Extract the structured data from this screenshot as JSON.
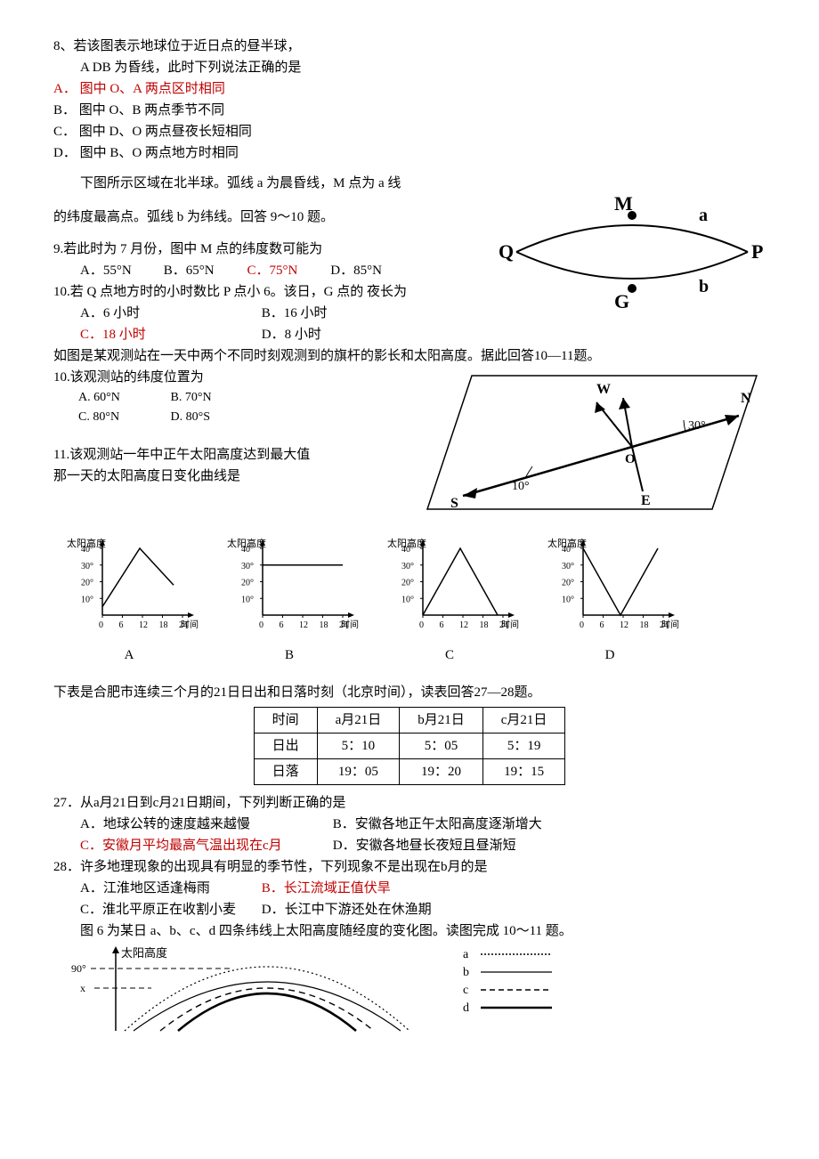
{
  "q8": {
    "stem1": "8、若该图表示地球位于近日点的昼半球，",
    "stem2": "A DB 为昏线，此时下列说法正确的是",
    "A": "A．  图中 O、A 两点区时相同",
    "B": "B．  图中 O、B 两点季节不同",
    "C": "C．  图中 D、O 两点昼夜长短相同",
    "D": "D．  图中 B、O 两点地方时相同"
  },
  "lead9": "下图所示区域在北半球。弧线 a 为晨昏线，M 点为 a 线",
  "lead9b": "的纬度最高点。弧线 b 为纬线。回答 9～10 题。",
  "q9": {
    "stem": "9.若此时为 7 月份，图中 M 点的纬度数可能为",
    "A": "A．55°N",
    "B": "B．65°N",
    "C": "C．75°N",
    "D": "D．85°N"
  },
  "q10a": {
    "stem": "10.若 Q 点地方时的小时数比 P 点小 6。该日，G 点的  夜长为",
    "A": "A．6 小时",
    "B": "B．16 小时",
    "C": "C．18 小时",
    "D": "D．8 小时"
  },
  "diag1": {
    "labels": {
      "M": "M",
      "Q": "Q",
      "P": "P",
      "G": "G",
      "a": "a",
      "b": "b"
    },
    "stroke": "#000",
    "fill": "#000"
  },
  "lead10": "如图是某观测站在一天中两个不同时刻观测到的旗杆的影长和太阳高度。据此回答10—11题。",
  "q10b": {
    "stem": "10.该观测站的纬度位置为",
    "A": "60°N",
    "B": "70°N",
    "C": "80°N",
    "D": "80°S"
  },
  "q11": {
    "stem1": "11.该观测站一年中正午太阳高度达到最大值",
    "stem2": "那一天的太阳高度日变化曲线是"
  },
  "shadow_diag": {
    "W": "W",
    "N": "N",
    "S": "S",
    "E": "E",
    "O": "O",
    "ang1": "10°",
    "ang2": "30°",
    "stroke": "#000"
  },
  "mini_charts": {
    "ylabel": "太阳高度",
    "yticks": [
      "40°",
      "30°",
      "20°",
      "10°"
    ],
    "xticks": [
      "0",
      "6",
      "12",
      "18",
      "24"
    ],
    "xlabel": "时间",
    "letters": [
      "A",
      "B",
      "C",
      "D"
    ],
    "A": {
      "poly": [
        [
          0,
          5
        ],
        [
          42,
          40
        ],
        [
          80,
          18
        ]
      ]
    },
    "B": {
      "flat": 30
    },
    "C": {
      "poly": [
        [
          0,
          0
        ],
        [
          42,
          40
        ],
        [
          84,
          0
        ]
      ]
    },
    "D": {
      "poly": [
        [
          0,
          40
        ],
        [
          42,
          0
        ],
        [
          84,
          40
        ]
      ]
    }
  },
  "lead27": "下表是合肥市连续三个月的21日日出和日落时刻（北京时间），读表回答27—28题。",
  "table": {
    "headers": [
      "时间",
      "a月21日",
      "b月21日",
      "c月21日"
    ],
    "row1": [
      "日出",
      "5：10",
      "5：05",
      "5：19"
    ],
    "row2": [
      "日落",
      "19：05",
      "19：20",
      "19：15"
    ]
  },
  "q27": {
    "stem": "27．从a月21日到c月21日期间，下列判断正确的是",
    "A": "A．地球公转的速度越来越慢",
    "B": "B．安徽各地正午太阳高度逐渐增大",
    "C": "C．安徽月平均最高气温出现在c月",
    "D": "D．安徽各地昼长夜短且昼渐短"
  },
  "q28": {
    "stem": "28．许多地理现象的出现具有明显的季节性，下列现象不是出现在b月的是",
    "A": "A．江淮地区适逢梅雨",
    "B": "B．长江流域正值伏旱",
    "C": "C．淮北平原正在收割小麦",
    "D": "D．长江中下游还处在休渔期"
  },
  "lead_last": "图 6 为某日 a、b、c、d 四条纬线上太阳高度随经度的变化图。读图完成 10～11 题。",
  "last_chart": {
    "ylabel": "太阳高度",
    "yticks": [
      "90°",
      "x"
    ],
    "legend": [
      {
        "k": "a",
        "dash": "2,2",
        "w": 1.5
      },
      {
        "k": "b",
        "dash": "",
        "w": 1.2
      },
      {
        "k": "c",
        "dash": "6,4",
        "w": 1.5
      },
      {
        "k": "d",
        "dash": "",
        "w": 2.5
      }
    ]
  }
}
